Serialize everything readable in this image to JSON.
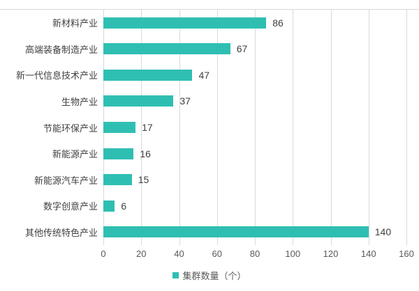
{
  "chart_data": {
    "type": "bar",
    "orientation": "horizontal",
    "categories": [
      "新材料产业",
      "高端装备制造产业",
      "新一代信息技术产业",
      "生物产业",
      "节能环保产业",
      "新能源产业",
      "新能源汽车产业",
      "数字创意产业",
      "其他传统特色产业"
    ],
    "values": [
      86,
      67,
      47,
      37,
      17,
      16,
      15,
      6,
      140
    ],
    "title": "",
    "xlabel": "",
    "ylabel": "",
    "xlim": [
      0,
      160
    ],
    "xticks": [
      0,
      20,
      40,
      60,
      80,
      100,
      120,
      140,
      160
    ],
    "grid": "vertical",
    "legend": "集群数量（个）",
    "legend_position": "bottom-center"
  },
  "colors": {
    "bar": "#2fbfb2",
    "gridline": "#d9d9d9",
    "category_text": "#404040",
    "value_text": "#404040",
    "tick_text": "#595959",
    "legend_text": "#595959",
    "background": "#ffffff"
  }
}
